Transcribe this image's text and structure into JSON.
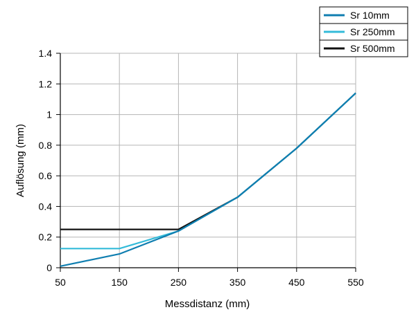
{
  "chart_data": {
    "type": "line",
    "title": "",
    "xlabel": "Messdistanz (mm)",
    "ylabel": "Auflösung (mm)",
    "xlim": [
      50,
      550
    ],
    "ylim": [
      0,
      1.4
    ],
    "x_ticks": [
      50,
      150,
      250,
      350,
      450,
      550
    ],
    "x_tick_labels": [
      "50",
      "150",
      "250",
      "350",
      "450",
      "550"
    ],
    "y_ticks": [
      0,
      0.2,
      0.4,
      0.6,
      0.8,
      1.0,
      1.2,
      1.4
    ],
    "y_tick_labels": [
      "0",
      "0.2",
      "0.4",
      "0.6",
      "0.8",
      "1",
      "1.2",
      "1.4"
    ],
    "grid": true,
    "legend_position": "top-right",
    "series": [
      {
        "name": "Sr 10mm",
        "color": "#0f7eb0",
        "points": [
          [
            50,
            0.01
          ],
          [
            150,
            0.09
          ],
          [
            250,
            0.24
          ],
          [
            350,
            0.46
          ],
          [
            450,
            0.78
          ],
          [
            550,
            1.14
          ]
        ]
      },
      {
        "name": "Sr 250mm",
        "color": "#33bbd9",
        "points": [
          [
            50,
            0.125
          ],
          [
            150,
            0.125
          ],
          [
            250,
            0.24
          ],
          [
            350,
            0.46
          ],
          [
            450,
            0.78
          ],
          [
            550,
            1.14
          ]
        ]
      },
      {
        "name": "Sr 500mm",
        "color": "#111111",
        "points": [
          [
            50,
            0.25
          ],
          [
            250,
            0.25
          ],
          [
            350,
            0.46
          ],
          [
            450,
            0.78
          ],
          [
            550,
            1.14
          ]
        ]
      }
    ]
  }
}
